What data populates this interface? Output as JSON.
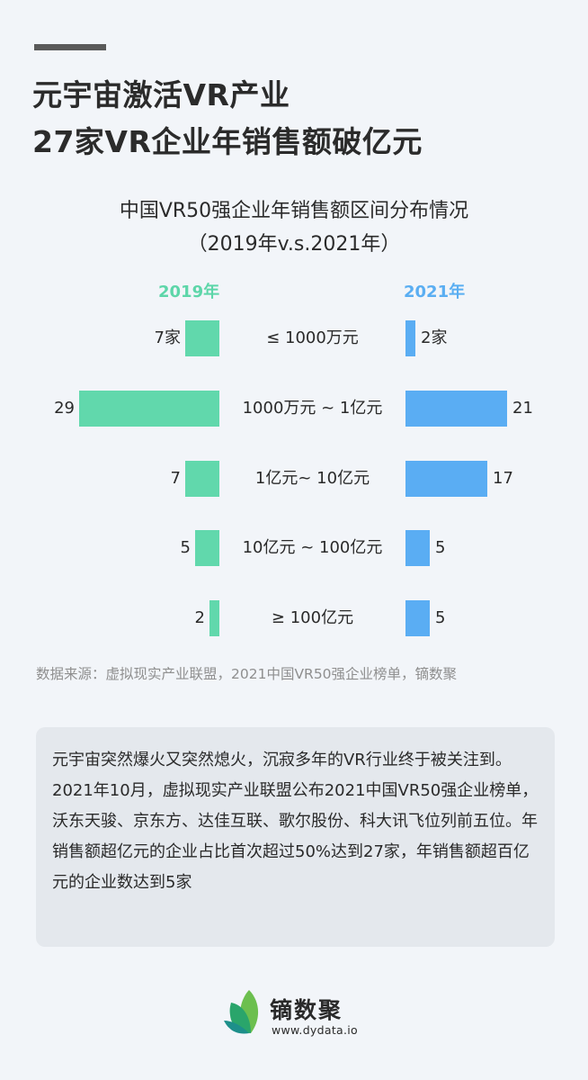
{
  "header": {
    "title_line1": "元宇宙激活VR产业",
    "title_line2": "27家VR企业年销售额破亿元"
  },
  "chart_data": {
    "type": "bar",
    "title": "中国VR50强企业年销售额区间分布情况",
    "subtitle": "（2019年v.s.2021年）",
    "orientation": "horizontal-butterfly",
    "categories": [
      "≤ 1000万元",
      "1000万元 ~ 1亿元",
      "1亿元~ 10亿元",
      "10亿元 ~ 100亿元",
      "≥ 100亿元"
    ],
    "series": [
      {
        "name": "2019年",
        "color": "#61d8ac",
        "values": [
          7,
          29,
          7,
          5,
          2
        ]
      },
      {
        "name": "2021年",
        "color": "#5aadf3",
        "values": [
          2,
          21,
          17,
          5,
          5
        ]
      }
    ],
    "value_labels_2019": [
      "7家",
      "29",
      "7",
      "5",
      "2"
    ],
    "value_labels_2021": [
      "2家",
      "21",
      "17",
      "5",
      "5"
    ],
    "unit": "家",
    "xlabel": "",
    "ylabel": ""
  },
  "legend": {
    "left": "2019年",
    "right": "2021年"
  },
  "source": "数据来源：虚拟现实产业联盟，2021中国VR50强企业榜单，镝数聚",
  "summary": "元宇宙突然爆火又突然熄火，沉寂多年的VR行业终于被关注到。2021年10月，虚拟现实产业联盟公布2021中国VR50强企业榜单，沃东天骏、京东方、达佳互联、歌尔股份、科大讯飞位列前五位。年销售额超亿元的企业占比首次超过50%达到27家，年销售额超百亿元的企业数达到5家",
  "branding": {
    "name": "镝数聚",
    "url": "www.dydata.io",
    "colors": {
      "leaf_light": "#6cbf4f",
      "leaf_mid": "#2aa56b",
      "leaf_dark": "#1d8f8a"
    }
  }
}
